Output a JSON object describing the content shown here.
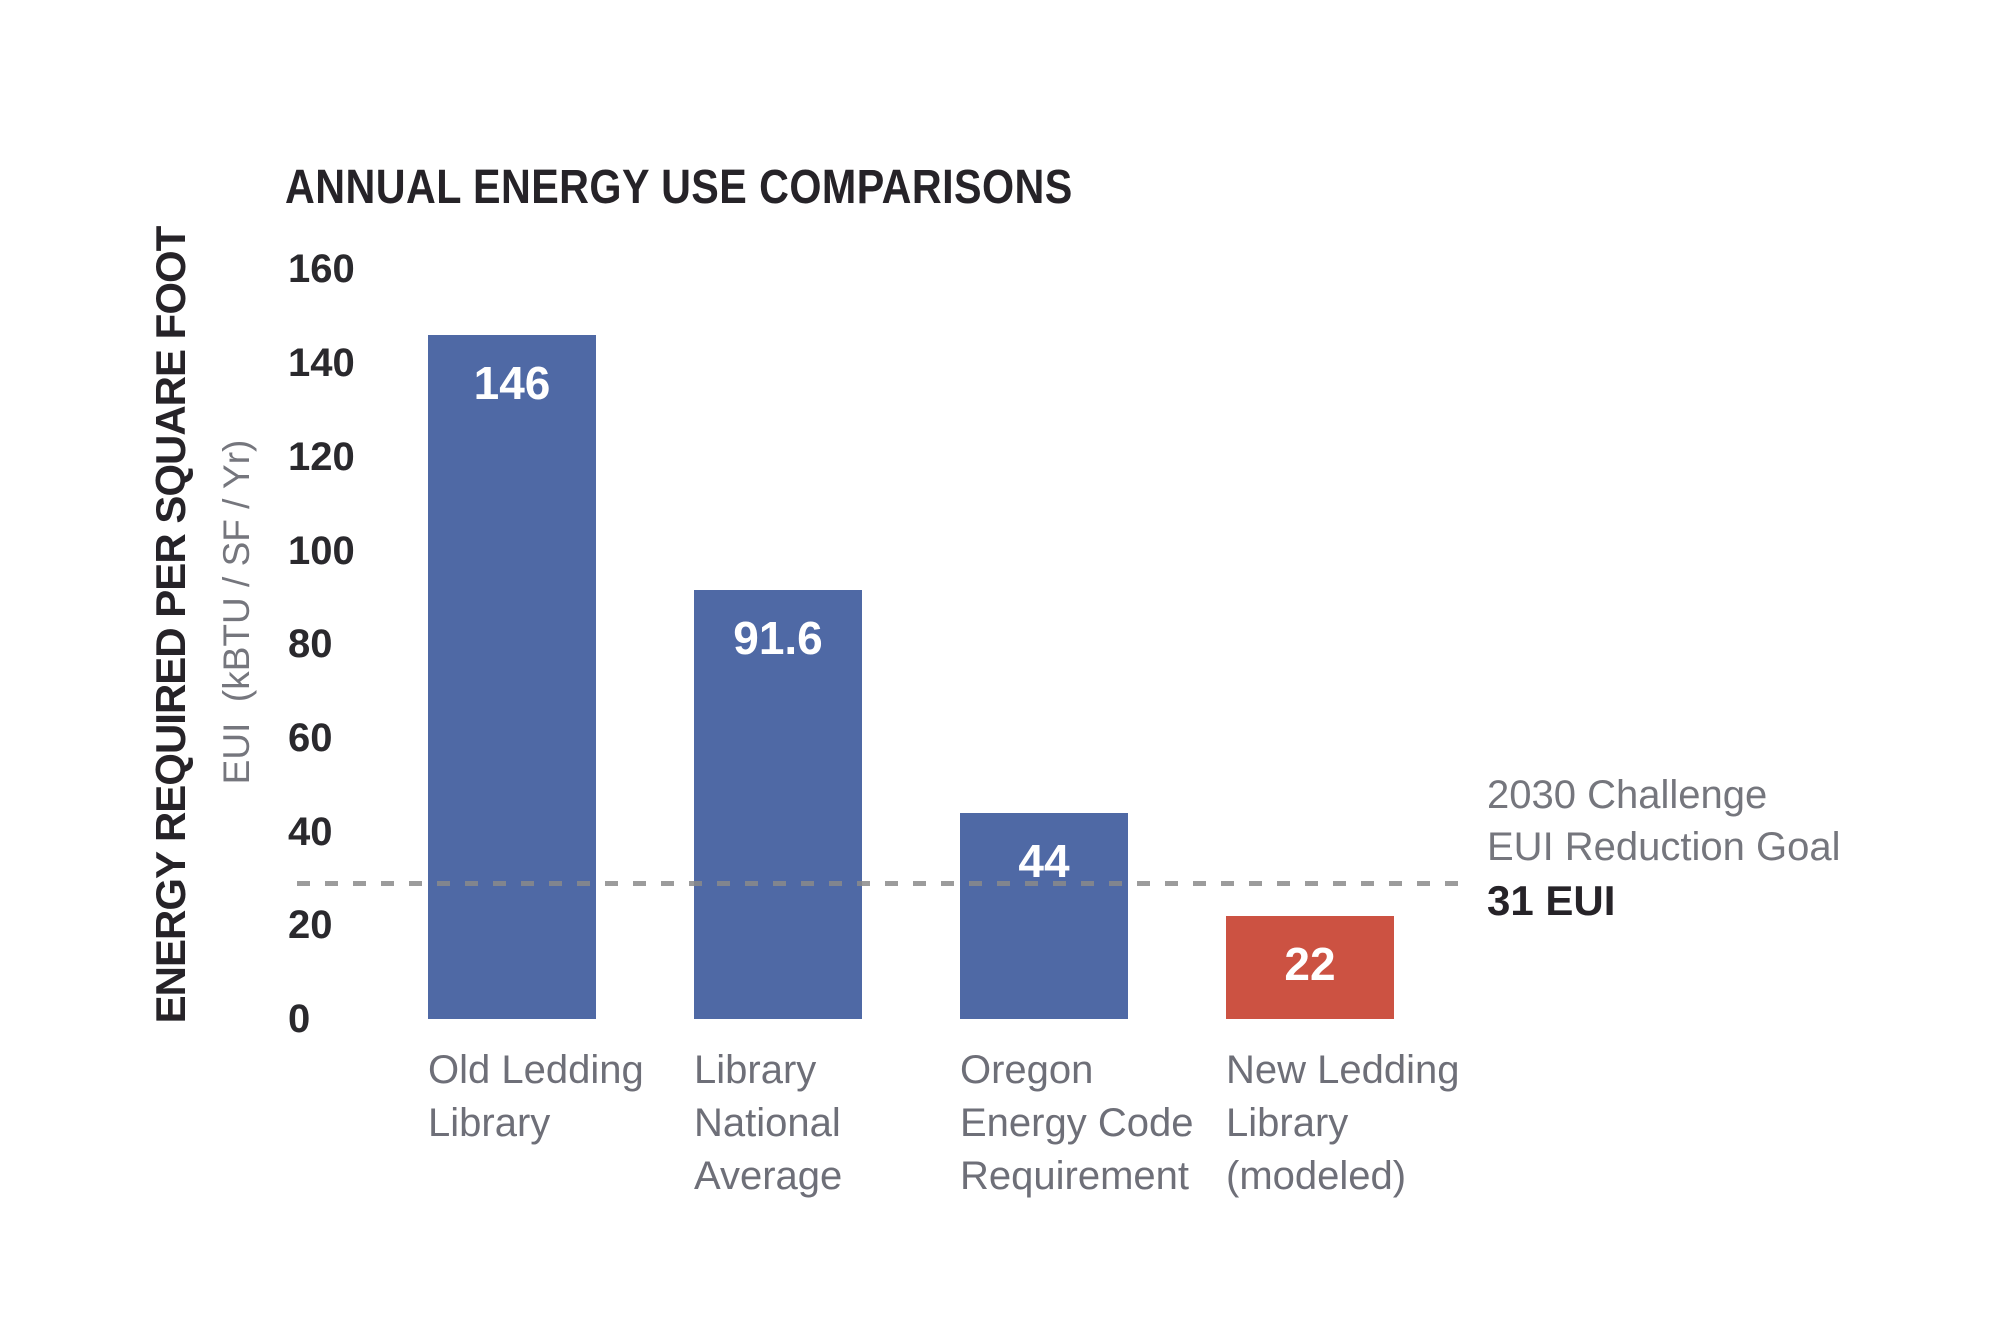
{
  "chart_data": {
    "type": "bar",
    "title": "ANNUAL ENERGY USE COMPARISONS",
    "ylabel": "ENERGY REQUIRED PER SQUARE FOOT",
    "ylabel_secondary": "EUI  (kBTU / SF / Yr)",
    "xlabel": "",
    "categories": [
      "Old Ledding Library",
      "Library National Average",
      "Oregon Energy Code Requirement",
      "New Ledding Library (modeled)"
    ],
    "category_lines": [
      [
        "Old Ledding",
        "Library"
      ],
      [
        "Library",
        "National",
        "Average"
      ],
      [
        "Oregon",
        "Energy Code",
        "Requirement"
      ],
      [
        "New Ledding",
        "Library",
        "(modeled)"
      ]
    ],
    "values": [
      146,
      91.6,
      44,
      22
    ],
    "value_labels": [
      "146",
      "91.6",
      "44",
      "22"
    ],
    "bar_colors": [
      "#4f69a5",
      "#4f69a5",
      "#4f69a5",
      "#cc5242"
    ],
    "yticks": [
      160,
      140,
      120,
      100,
      80,
      60,
      40,
      20,
      0
    ],
    "ylim": [
      0,
      160
    ],
    "grid": false,
    "legend": null,
    "goal_line": {
      "value": 31,
      "label_line1": "2030 Challenge",
      "label_line2": "EUI Reduction Goal",
      "value_label": "31 EUI",
      "style": "dashed",
      "color": "#8a8a8a"
    },
    "colors": {
      "bar_blue": "#4f69a5",
      "bar_red": "#cc5242",
      "text_dark": "#262328",
      "text_gray": "#75767d",
      "value_label_text": "#ffffff",
      "background": "#ffffff"
    }
  }
}
